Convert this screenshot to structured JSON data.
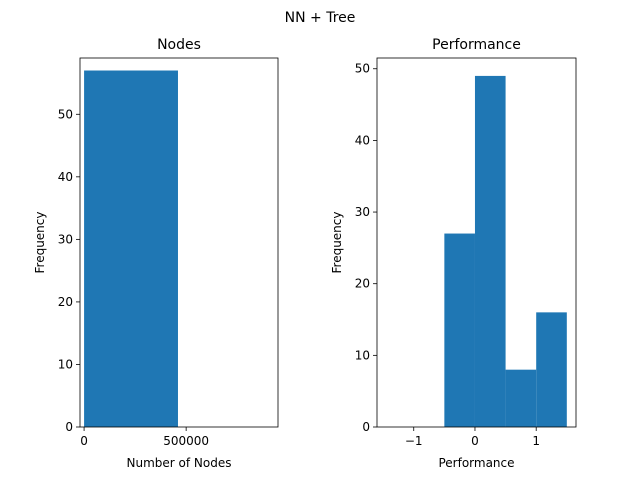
{
  "figure_title": "NN + Tree",
  "chart_data": [
    {
      "type": "bar",
      "title": "Nodes",
      "xlabel": "Number of Nodes",
      "ylabel": "Frequency",
      "xlim": [
        -20000,
        950000
      ],
      "ylim": [
        0,
        59
      ],
      "x_ticks": [
        0,
        500000
      ],
      "x_tick_labels": [
        "0",
        "500000"
      ],
      "y_ticks": [
        0,
        10,
        20,
        30,
        40,
        50
      ],
      "y_tick_labels": [
        "0",
        "10",
        "20",
        "30",
        "40",
        "50"
      ],
      "bins": [
        {
          "x0": 0,
          "x1": 460000,
          "value": 57
        }
      ],
      "color": "#1f77b4"
    },
    {
      "type": "bar",
      "title": "Performance",
      "xlabel": "Performance",
      "ylabel": "Frequency",
      "xlim": [
        -1.6,
        1.65
      ],
      "ylim": [
        0,
        51.5
      ],
      "x_ticks": [
        -1,
        0,
        1
      ],
      "x_tick_labels": [
        "−1",
        "0",
        "1"
      ],
      "y_ticks": [
        0,
        10,
        20,
        30,
        40,
        50
      ],
      "y_tick_labels": [
        "0",
        "10",
        "20",
        "30",
        "40",
        "50"
      ],
      "bins": [
        {
          "x0": -0.5,
          "x1": 0.0,
          "value": 27
        },
        {
          "x0": 0.0,
          "x1": 0.5,
          "value": 49
        },
        {
          "x0": 0.5,
          "x1": 1.0,
          "value": 8
        },
        {
          "x0": 1.0,
          "x1": 1.5,
          "value": 16
        }
      ],
      "color": "#1f77b4"
    }
  ]
}
